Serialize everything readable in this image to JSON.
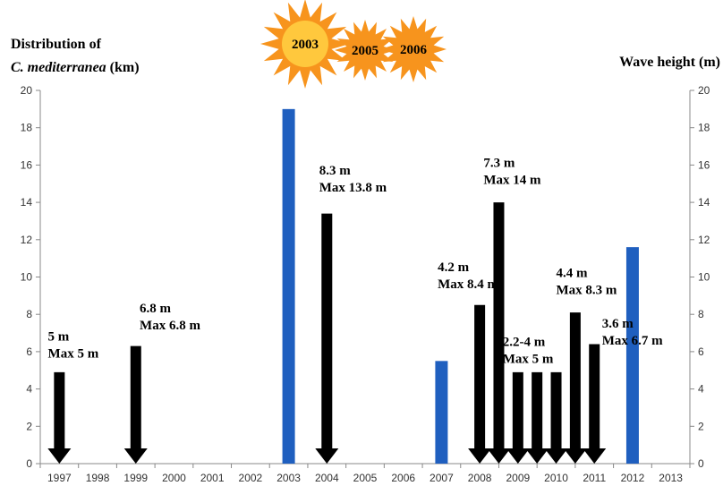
{
  "chart_data": {
    "type": "bar",
    "left_axis": {
      "title_line1": "Distribution of",
      "title_line2_italic": "C. mediterranea",
      "title_line2_rest": " (km)",
      "ylim": [
        0,
        20
      ],
      "ticks": [
        "0",
        "2",
        "4",
        "6",
        "8",
        "10",
        "12",
        "14",
        "16",
        "18",
        "20"
      ]
    },
    "right_axis": {
      "title": "Wave height (m)",
      "ylim": [
        0,
        20
      ],
      "ticks": [
        "0",
        "2",
        "4",
        "6",
        "8",
        "10",
        "12",
        "14",
        "16",
        "18",
        "20"
      ]
    },
    "categories": [
      "1997",
      "1998",
      "1999",
      "2000",
      "2001",
      "2002",
      "2003",
      "2004",
      "2005",
      "2006",
      "2007",
      "2008",
      "2009",
      "2010",
      "2011",
      "2012",
      "2013"
    ],
    "series": [
      {
        "color": "#1f5fbf",
        "points": [
          {
            "x": 2003,
            "y": 19.0
          },
          {
            "x": 2007,
            "y": 5.5
          },
          {
            "x": 2012,
            "y": 11.6
          }
        ]
      },
      {
        "color": "#000000",
        "points": [
          {
            "x": 1997,
            "y": 4.9
          },
          {
            "x": 1999,
            "y": 6.3
          },
          {
            "x": 2004,
            "y": 13.4
          },
          {
            "x": 2008,
            "y": 8.5
          },
          {
            "x": 2008.5,
            "y": 14.0
          },
          {
            "x": 2009,
            "y": 4.9
          },
          {
            "x": 2009.5,
            "y": 4.9
          },
          {
            "x": 2010,
            "y": 4.9
          },
          {
            "x": 2010.5,
            "y": 8.1
          },
          {
            "x": 2011,
            "y": 6.4
          }
        ]
      }
    ],
    "annotations": [
      {
        "x": 1997.2,
        "y": 6.6,
        "lines": [
          "5 m",
          "Max 5 m"
        ]
      },
      {
        "x": 1999.6,
        "y": 8.1,
        "lines": [
          "6.8 m",
          "Max 6.8 m"
        ]
      },
      {
        "x": 2004.3,
        "y": 15.5,
        "lines": [
          "8.3 m",
          "Max 13.8 m"
        ]
      },
      {
        "x": 2007.4,
        "y": 10.3,
        "lines": [
          "4.2 m",
          "Max 8.4 m"
        ]
      },
      {
        "x": 2008.6,
        "y": 15.9,
        "lines": [
          "7.3 m",
          "Max 14 m"
        ]
      },
      {
        "x": 2009.1,
        "y": 6.3,
        "lines": [
          "2.2-4 m",
          "Max 5 m"
        ]
      },
      {
        "x": 2010.5,
        "y": 10.0,
        "lines": [
          "4.4 m",
          "Max 8.3 m"
        ]
      },
      {
        "x": 2011.7,
        "y": 7.3,
        "lines": [
          "3.6 m",
          "Max 6.7 m"
        ]
      }
    ],
    "heatwave_years": [
      "2003",
      "2005",
      "2006"
    ],
    "sun_color": "#f7941d",
    "sun_center_color": "#ffc83d"
  }
}
